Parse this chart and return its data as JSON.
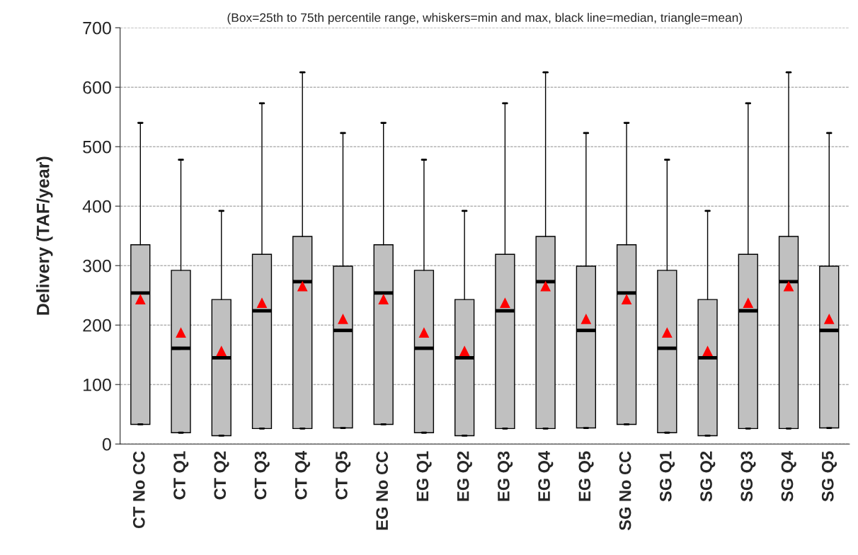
{
  "chart_data": {
    "type": "box",
    "title": "(Box=25th to 75th percentile range, whiskers=min and max, black line=median, triangle=mean)",
    "ylabel": "Delivery (TAF/year)",
    "categories": [
      "CT No CC",
      "CT Q1",
      "CT Q2",
      "CT Q3",
      "CT Q4",
      "CT Q5",
      "EG No CC",
      "EG Q1",
      "EG Q2",
      "EG Q3",
      "EG Q4",
      "EG Q5",
      "SG No CC",
      "SG Q1",
      "SG Q2",
      "SG Q3",
      "SG Q4",
      "SG Q5"
    ],
    "series": [
      {
        "color": "#c0c0c0",
        "boxes": [
          {
            "low": 33,
            "q1": 33,
            "median": 254,
            "q3": 335,
            "high": 540
          },
          {
            "low": 19,
            "q1": 19,
            "median": 161,
            "q3": 292,
            "high": 478
          },
          {
            "low": 14,
            "q1": 14,
            "median": 145,
            "q3": 243,
            "high": 392
          },
          {
            "low": 26,
            "q1": 26,
            "median": 224,
            "q3": 319,
            "high": 573
          },
          {
            "low": 26,
            "q1": 26,
            "median": 273,
            "q3": 349,
            "high": 625
          },
          {
            "low": 27,
            "q1": 27,
            "median": 191,
            "q3": 299,
            "high": 523
          },
          {
            "low": 33,
            "q1": 33,
            "median": 254,
            "q3": 335,
            "high": 540
          },
          {
            "low": 19,
            "q1": 19,
            "median": 161,
            "q3": 292,
            "high": 478
          },
          {
            "low": 14,
            "q1": 14,
            "median": 145,
            "q3": 243,
            "high": 392
          },
          {
            "low": 26,
            "q1": 26,
            "median": 224,
            "q3": 319,
            "high": 573
          },
          {
            "low": 26,
            "q1": 26,
            "median": 273,
            "q3": 349,
            "high": 625
          },
          {
            "low": 27,
            "q1": 27,
            "median": 191,
            "q3": 299,
            "high": 523
          },
          {
            "low": 33,
            "q1": 33,
            "median": 254,
            "q3": 335,
            "high": 540
          },
          {
            "low": 19,
            "q1": 19,
            "median": 161,
            "q3": 292,
            "high": 478
          },
          {
            "low": 14,
            "q1": 14,
            "median": 145,
            "q3": 243,
            "high": 392
          },
          {
            "low": 26,
            "q1": 26,
            "median": 224,
            "q3": 319,
            "high": 573
          },
          {
            "low": 26,
            "q1": 26,
            "median": 273,
            "q3": 349,
            "high": 625
          },
          {
            "low": 27,
            "q1": 27,
            "median": 191,
            "q3": 299,
            "high": 523
          }
        ]
      },
      {
        "type": "scatter",
        "color": "#ff0000",
        "marker": "triangle",
        "x": [
          "CT No CC",
          "CT Q1",
          "CT Q2",
          "CT Q3",
          "CT Q4",
          "CT Q5",
          "EG No CC",
          "EG Q1",
          "EG Q2",
          "EG Q3",
          "EG Q4",
          "EG Q5",
          "SG No CC",
          "SG Q1",
          "SG Q2",
          "SG Q3",
          "SG Q4",
          "SG Q5"
        ],
        "values": [
          243,
          187,
          156,
          237,
          265,
          210,
          243,
          187,
          156,
          237,
          265,
          210,
          243,
          187,
          156,
          237,
          265,
          210
        ]
      }
    ],
    "ylim": [
      0,
      700
    ],
    "yticks": [
      0,
      100,
      200,
      300,
      400,
      500,
      600,
      700
    ],
    "grid": "y",
    "legend": false
  }
}
